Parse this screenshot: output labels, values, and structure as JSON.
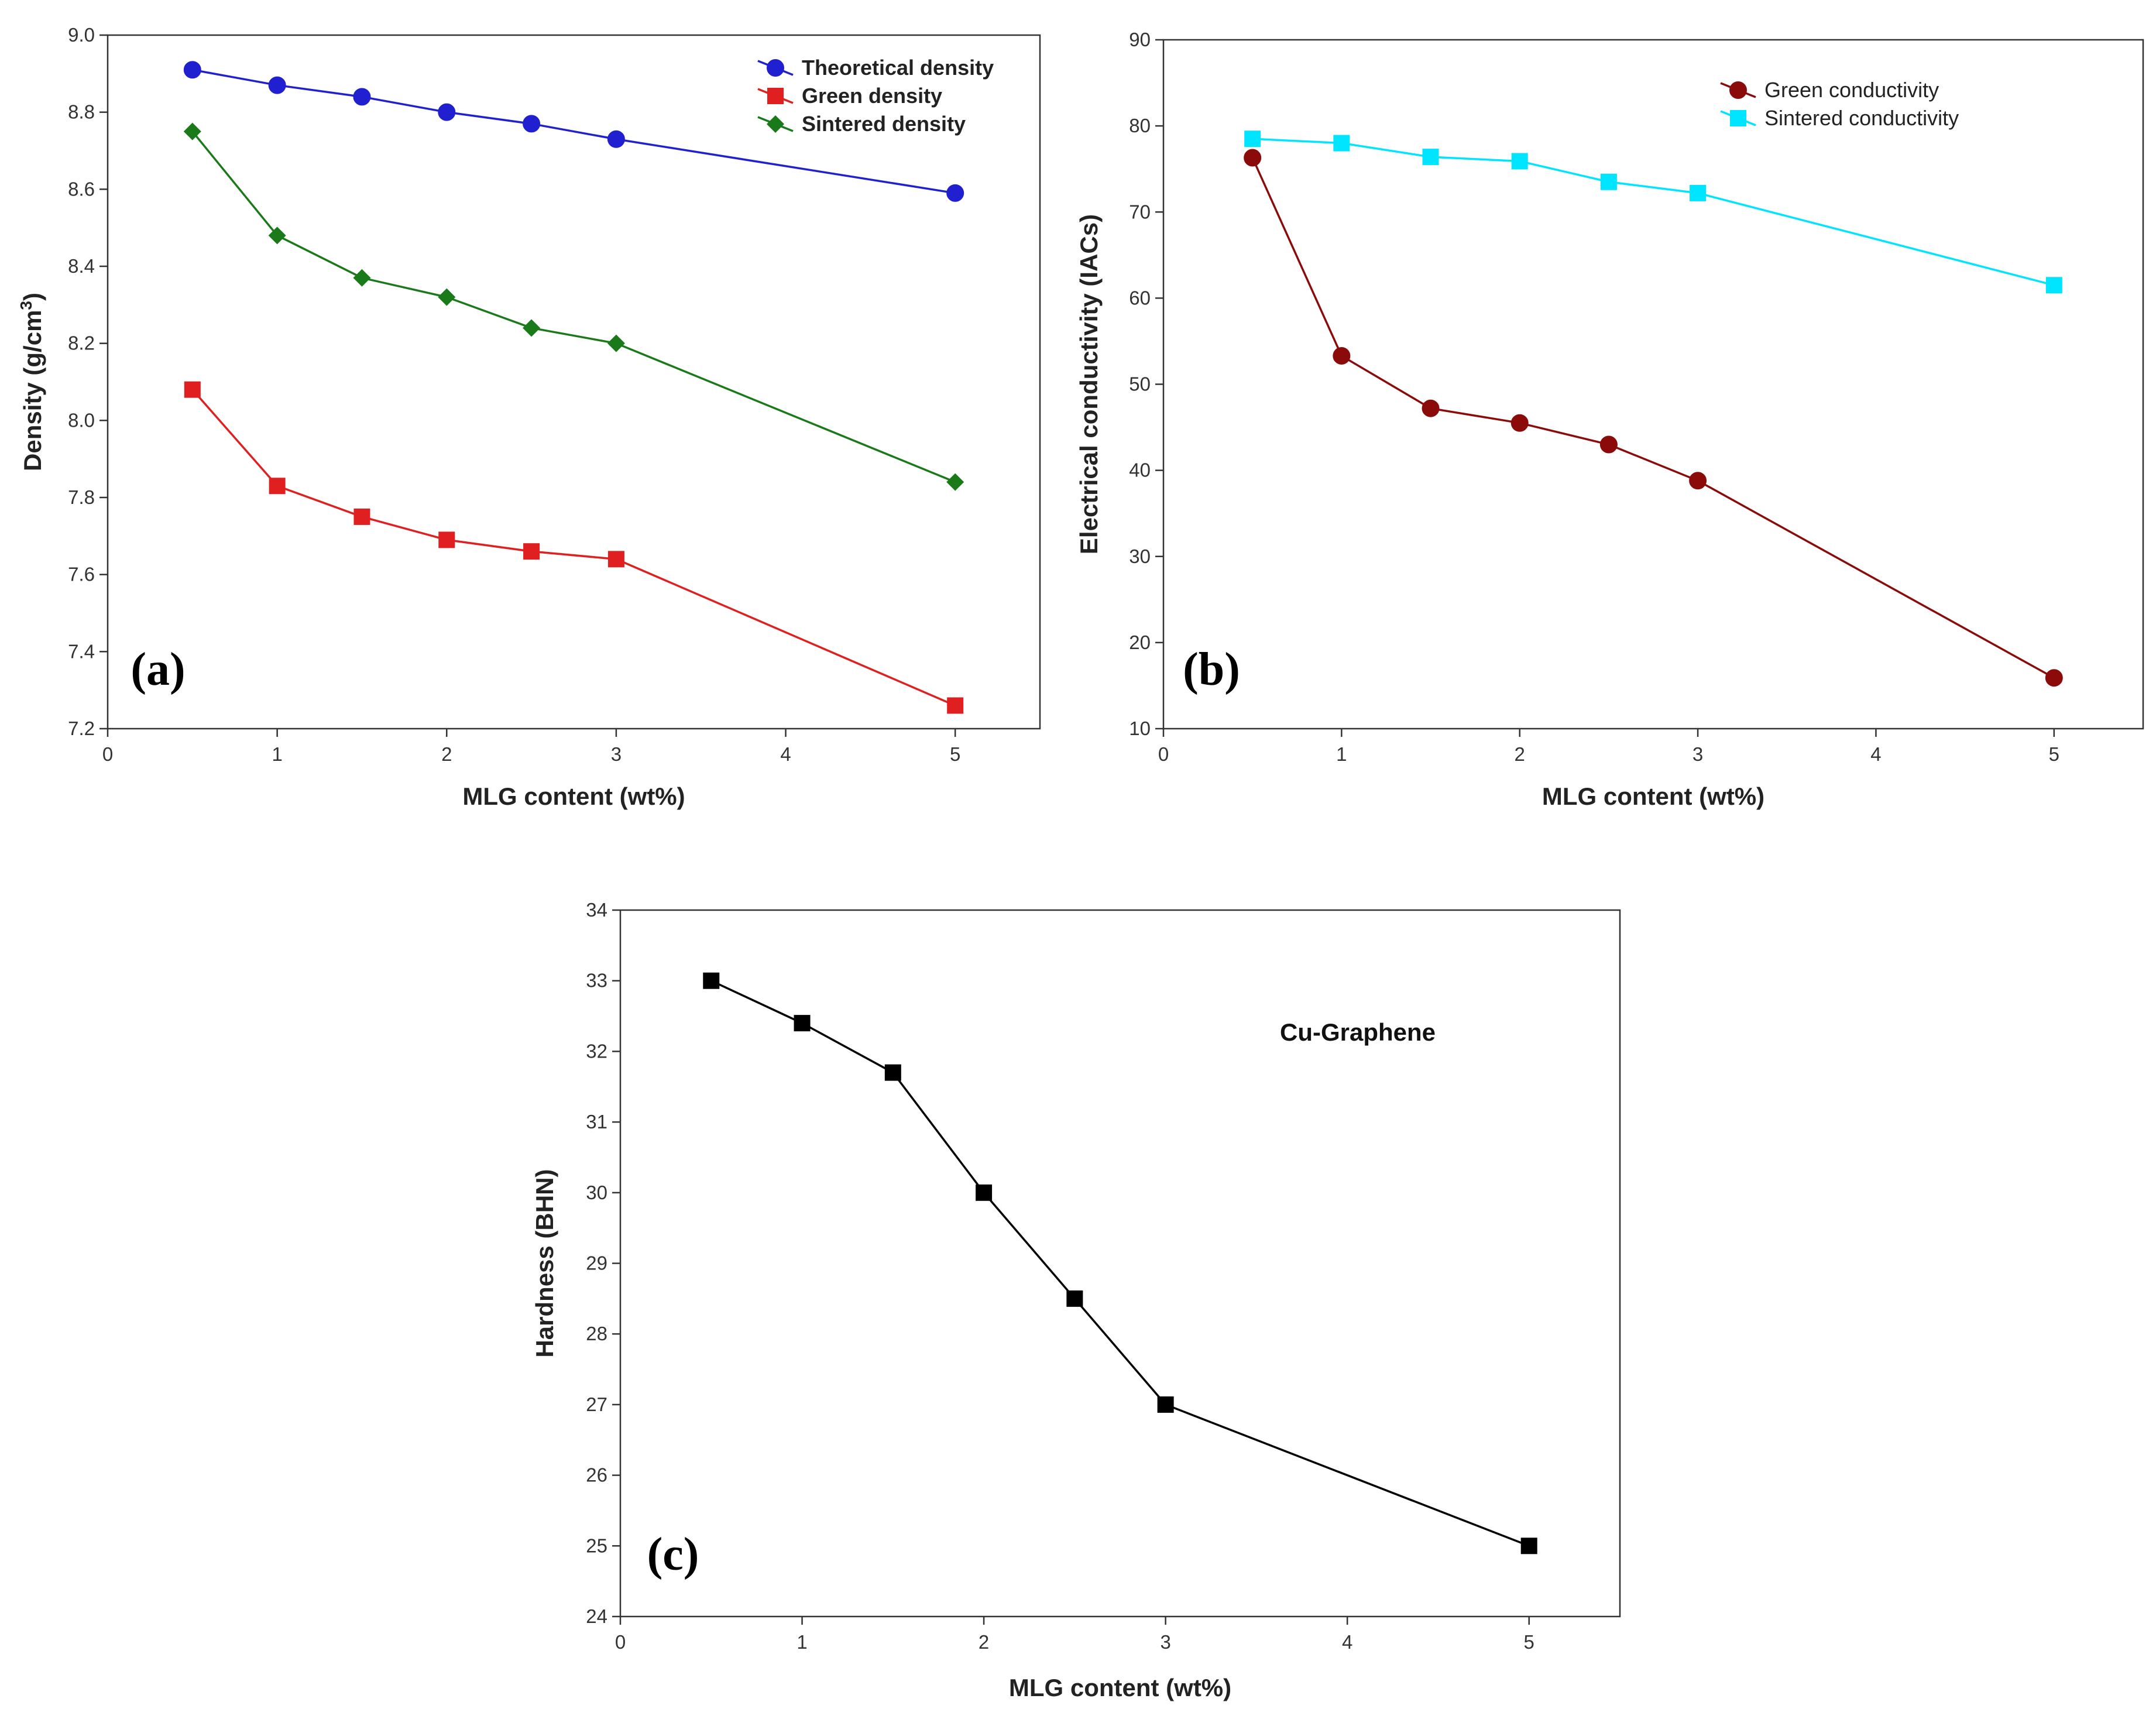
{
  "chart_data": [
    {
      "id": "a",
      "type": "line",
      "panel_label": "(a)",
      "xlabel": "MLG content (wt%)",
      "ylabel": "Density (g/cm",
      "ylabel_sup": "3",
      "ylabel_end": ")",
      "xlim": [
        0,
        5.5
      ],
      "ylim": [
        7.2,
        9.0
      ],
      "xticks": [
        0,
        1,
        2,
        3,
        4,
        5
      ],
      "yticks": [
        7.2,
        7.4,
        7.6,
        7.8,
        8.0,
        8.2,
        8.4,
        8.6,
        8.8,
        9.0
      ],
      "ytick_labels": [
        "7.2",
        "7.4",
        "7.6",
        "7.8",
        "8.0",
        "8.2",
        "8.4",
        "8.6",
        "8.8",
        "9.0"
      ],
      "legend_position": "top-right",
      "x": [
        0.5,
        1,
        1.5,
        2,
        2.5,
        3,
        5
      ],
      "series": [
        {
          "name": "Theoretical density",
          "color": "#2020d0",
          "marker": "circle",
          "values": [
            8.91,
            8.87,
            8.84,
            8.8,
            8.77,
            8.73,
            8.59
          ]
        },
        {
          "name": "Green density",
          "color": "#e02020",
          "marker": "square",
          "values": [
            8.08,
            7.83,
            7.75,
            7.69,
            7.66,
            7.64,
            7.26
          ]
        },
        {
          "name": "Sintered density",
          "color": "#1a7a1a",
          "marker": "diamond",
          "values": [
            8.75,
            8.48,
            8.37,
            8.32,
            8.24,
            8.2,
            7.84
          ]
        }
      ]
    },
    {
      "id": "b",
      "type": "line",
      "panel_label": "(b)",
      "xlabel": "MLG content (wt%)",
      "ylabel": "Electrical conductivity (IACs)",
      "xlim": [
        0,
        5.5
      ],
      "ylim": [
        10,
        90
      ],
      "xticks": [
        0,
        1,
        2,
        3,
        4,
        5
      ],
      "yticks": [
        10,
        20,
        30,
        40,
        50,
        60,
        70,
        80,
        90
      ],
      "ytick_labels": [
        "10",
        "20",
        "30",
        "40",
        "50",
        "60",
        "70",
        "80",
        "90"
      ],
      "legend_position": "top-right",
      "x": [
        0.5,
        1,
        1.5,
        2,
        2.5,
        3,
        5
      ],
      "series": [
        {
          "name": "Green conductivity",
          "color": "#8b0a0a",
          "marker": "circle",
          "values": [
            76.3,
            53.3,
            47.2,
            45.5,
            43.0,
            38.8,
            15.9
          ]
        },
        {
          "name": "Sintered conductivity",
          "color": "#00e5ff",
          "marker": "square",
          "values": [
            78.5,
            78.0,
            76.4,
            75.9,
            73.5,
            72.2,
            61.5
          ]
        }
      ]
    },
    {
      "id": "c",
      "type": "line",
      "panel_label": "(c)",
      "annotation": "Cu-Graphene",
      "xlabel": "MLG content (wt%)",
      "ylabel": "Hardness (BHN)",
      "xlim": [
        0,
        5.5
      ],
      "ylim": [
        24,
        34
      ],
      "xticks": [
        0,
        1,
        2,
        3,
        4,
        5
      ],
      "yticks": [
        24,
        25,
        26,
        27,
        28,
        29,
        30,
        31,
        32,
        33,
        34
      ],
      "ytick_labels": [
        "24",
        "25",
        "26",
        "27",
        "28",
        "29",
        "30",
        "31",
        "32",
        "33",
        "34"
      ],
      "x": [
        0.5,
        1,
        1.5,
        2,
        2.5,
        3,
        5
      ],
      "series": [
        {
          "name": "Hardness",
          "color": "#000000",
          "marker": "square",
          "values": [
            33.0,
            32.4,
            31.7,
            30.0,
            28.5,
            27.0,
            25.0
          ]
        }
      ]
    }
  ]
}
